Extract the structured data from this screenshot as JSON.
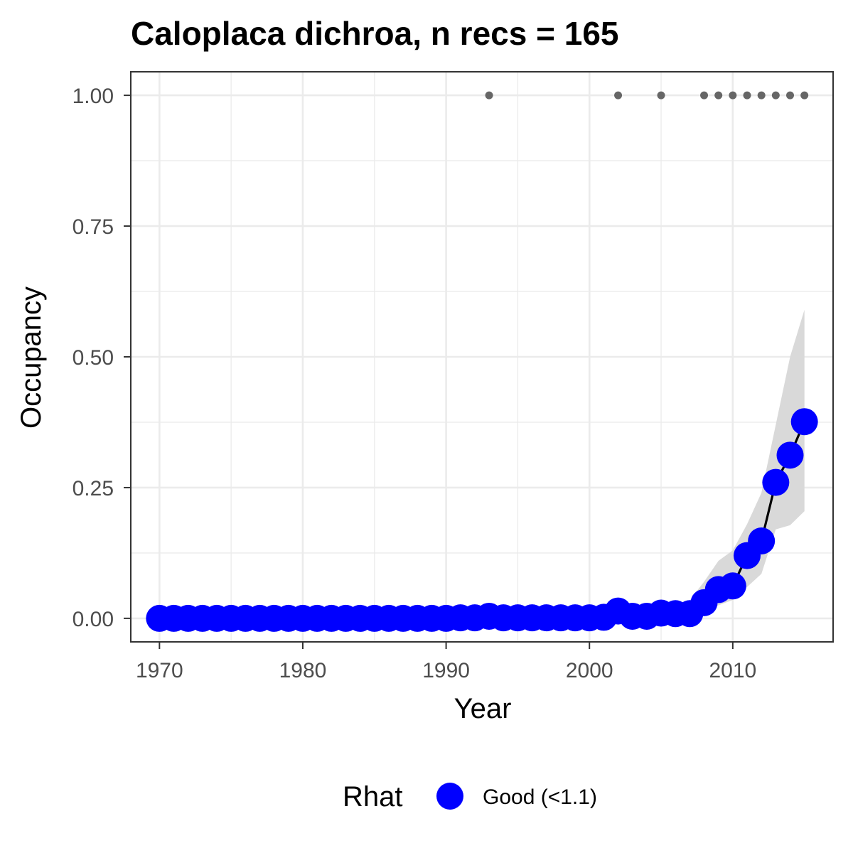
{
  "chart_data": {
    "type": "line",
    "title": "Caloplaca dichroa, n recs = 165",
    "xlabel": "Year",
    "ylabel": "Occupancy",
    "xlim": [
      1968,
      2017
    ],
    "ylim": [
      -0.045,
      1.045
    ],
    "x_ticks": [
      1970,
      1980,
      1990,
      2000,
      2010
    ],
    "y_ticks": [
      0,
      0.25,
      0.5,
      0.75,
      1
    ],
    "y_tick_labels": [
      "0.00",
      "0.25",
      "0.50",
      "0.75",
      "1.00"
    ],
    "grid": true,
    "legend": {
      "title": "Rhat",
      "position": "bottom",
      "entries": [
        {
          "label": "Good (<1.1)",
          "color": "#0000FF"
        }
      ]
    },
    "colors": {
      "points": "#0000FF",
      "line": "#000000",
      "ribbon": "#d9d9d9",
      "records": "#666666",
      "grid": "#ebebeb",
      "panel_border": "#333333"
    },
    "series": [
      {
        "x": [
          1970,
          1971,
          1972,
          1973,
          1974,
          1975,
          1976,
          1977,
          1978,
          1979,
          1980,
          1981,
          1982,
          1983,
          1984,
          1985,
          1986,
          1987,
          1988,
          1989,
          1990,
          1991,
          1992,
          1993,
          1994,
          1995,
          1996,
          1997,
          1998,
          1999,
          2000,
          2001,
          2002,
          2003,
          2004,
          2005,
          2006,
          2007,
          2008,
          2009,
          2010,
          2011,
          2012,
          2013,
          2014,
          2015
        ],
        "values": [
          0.0,
          0.0,
          0.0,
          0.0,
          0.0,
          0.0,
          0.0,
          0.0,
          0.0,
          0.0,
          0.0,
          0.0,
          0.0,
          0.0,
          0.0,
          0.0,
          0.0,
          0.0,
          0.0,
          0.0,
          0.0,
          0.001,
          0.001,
          0.004,
          0.001,
          0.001,
          0.001,
          0.001,
          0.001,
          0.001,
          0.001,
          0.002,
          0.014,
          0.004,
          0.004,
          0.01,
          0.009,
          0.009,
          0.03,
          0.055,
          0.062,
          0.12,
          0.148,
          0.26,
          0.312,
          0.376
        ],
        "lower": [
          0.0,
          0.0,
          0.0,
          0.0,
          0.0,
          0.0,
          0.0,
          0.0,
          0.0,
          0.0,
          0.0,
          0.0,
          0.0,
          0.0,
          0.0,
          0.0,
          0.0,
          0.0,
          0.0,
          0.0,
          0.0,
          0.0,
          0.0,
          0.0,
          0.0,
          0.0,
          0.0,
          0.0,
          0.0,
          0.0,
          0.0,
          0.0,
          0.002,
          0.0,
          0.0,
          0.002,
          0.002,
          0.003,
          0.012,
          0.025,
          0.035,
          0.06,
          0.085,
          0.17,
          0.178,
          0.205
        ],
        "upper": [
          0.005,
          0.005,
          0.005,
          0.005,
          0.005,
          0.005,
          0.005,
          0.005,
          0.005,
          0.005,
          0.005,
          0.005,
          0.005,
          0.005,
          0.005,
          0.005,
          0.005,
          0.005,
          0.005,
          0.005,
          0.005,
          0.007,
          0.008,
          0.012,
          0.008,
          0.008,
          0.008,
          0.008,
          0.008,
          0.008,
          0.008,
          0.01,
          0.025,
          0.015,
          0.015,
          0.02,
          0.025,
          0.035,
          0.07,
          0.11,
          0.13,
          0.18,
          0.24,
          0.37,
          0.5,
          0.59
        ]
      }
    ],
    "records": {
      "x": [
        1993,
        2002,
        2005,
        2008,
        2009,
        2010,
        2011,
        2012,
        2013,
        2014,
        2015
      ],
      "values": [
        1,
        1,
        1,
        1,
        1,
        1,
        1,
        1,
        1,
        1,
        1
      ]
    }
  }
}
